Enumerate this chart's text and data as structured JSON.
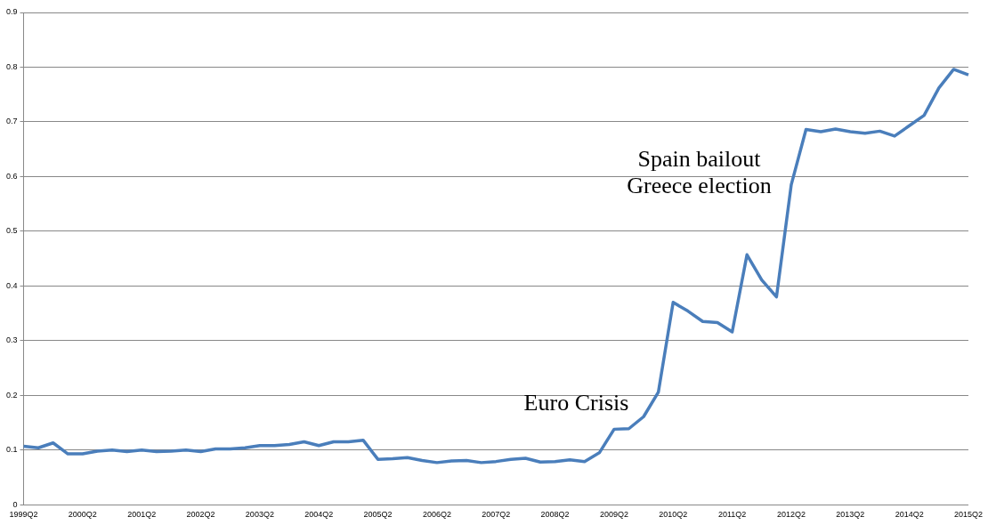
{
  "chart_data": {
    "type": "line",
    "categories": [
      "1999Q2",
      null,
      null,
      null,
      "2000Q2",
      null,
      null,
      null,
      "2001Q2",
      null,
      null,
      null,
      "2002Q2",
      null,
      null,
      null,
      "2003Q2",
      null,
      null,
      null,
      "2004Q2",
      null,
      null,
      null,
      "2005Q2",
      null,
      null,
      null,
      "2006Q2",
      null,
      null,
      null,
      "2007Q2",
      null,
      null,
      null,
      "2008Q2",
      null,
      null,
      null,
      "2009Q2",
      null,
      null,
      null,
      "2010Q2",
      null,
      null,
      null,
      "2011Q2",
      null,
      null,
      null,
      "2012Q2",
      null,
      null,
      null,
      "2013Q2",
      null,
      null,
      null,
      "2014Q2",
      null,
      null,
      null,
      "2015Q2"
    ],
    "series": [
      {
        "color": "#4a7ebb",
        "values": [
          0.107,
          0.104,
          0.113,
          0.093,
          0.093,
          0.098,
          0.1,
          0.097,
          0.1,
          0.097,
          0.098,
          0.1,
          0.097,
          0.102,
          0.102,
          0.104,
          0.108,
          0.108,
          0.11,
          0.115,
          0.108,
          0.115,
          0.115,
          0.118,
          0.083,
          0.084,
          0.086,
          0.081,
          0.077,
          0.08,
          0.081,
          0.077,
          0.079,
          0.083,
          0.085,
          0.078,
          0.079,
          0.082,
          0.079,
          0.095,
          0.138,
          0.139,
          0.161,
          0.206,
          0.37,
          0.354,
          0.335,
          0.333,
          0.316,
          0.457,
          0.411,
          0.38,
          0.585,
          0.686,
          0.682,
          0.687,
          0.682,
          0.679,
          0.683,
          0.674,
          0.693,
          0.712,
          0.762,
          0.796,
          0.786
        ]
      }
    ],
    "ylim": [
      0,
      0.9
    ],
    "yticks": [
      0,
      0.1,
      0.2,
      0.3,
      0.4,
      0.5,
      0.6,
      0.7,
      0.8,
      0.9
    ],
    "grid": "y",
    "legend": false,
    "marker": "none",
    "line_style": "solid",
    "annotations": [
      "Euro Crisis",
      "Spain bailout",
      "Greece election"
    ]
  }
}
